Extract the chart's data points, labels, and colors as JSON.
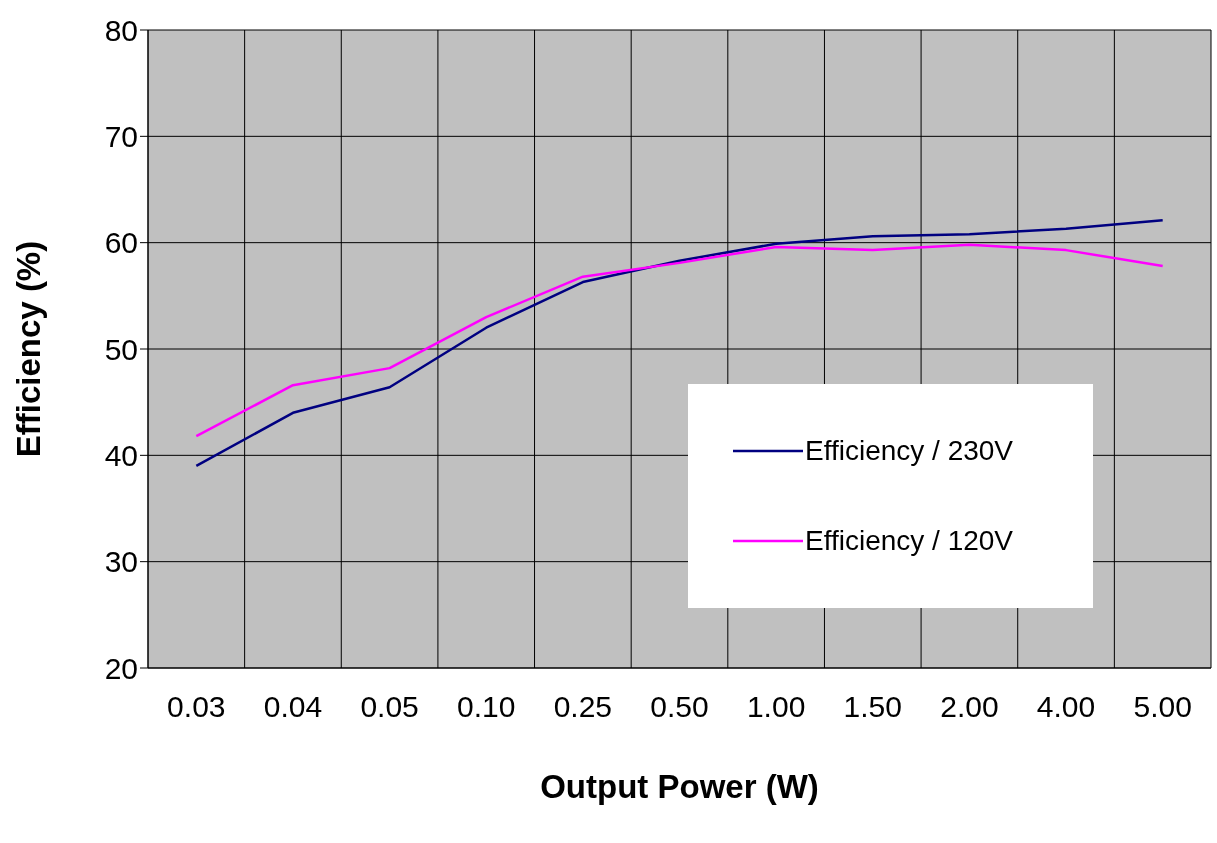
{
  "chart_data": {
    "type": "line",
    "xlabel": "Output Power (W)",
    "ylabel": "Efficiency (%)",
    "categories": [
      "0.03",
      "0.04",
      "0.05",
      "0.10",
      "0.25",
      "0.50",
      "1.00",
      "1.50",
      "2.00",
      "4.00",
      "5.00"
    ],
    "series": [
      {
        "name": "Efficiency / 230V",
        "color": "#000080",
        "values": [
          39.0,
          44.0,
          46.4,
          52.0,
          56.3,
          58.3,
          59.9,
          60.6,
          60.8,
          61.3,
          62.1
        ]
      },
      {
        "name": "Efficiency / 120V",
        "color": "#ff00ff",
        "values": [
          41.8,
          46.6,
          48.2,
          53.0,
          56.8,
          58.1,
          59.6,
          59.3,
          59.8,
          59.3,
          57.8
        ]
      }
    ],
    "ylim": [
      20,
      80
    ],
    "yticks": [
      20,
      30,
      40,
      50,
      60,
      70,
      80
    ],
    "grid": true,
    "legend": "right",
    "marker": "none",
    "line_style": "solid"
  }
}
